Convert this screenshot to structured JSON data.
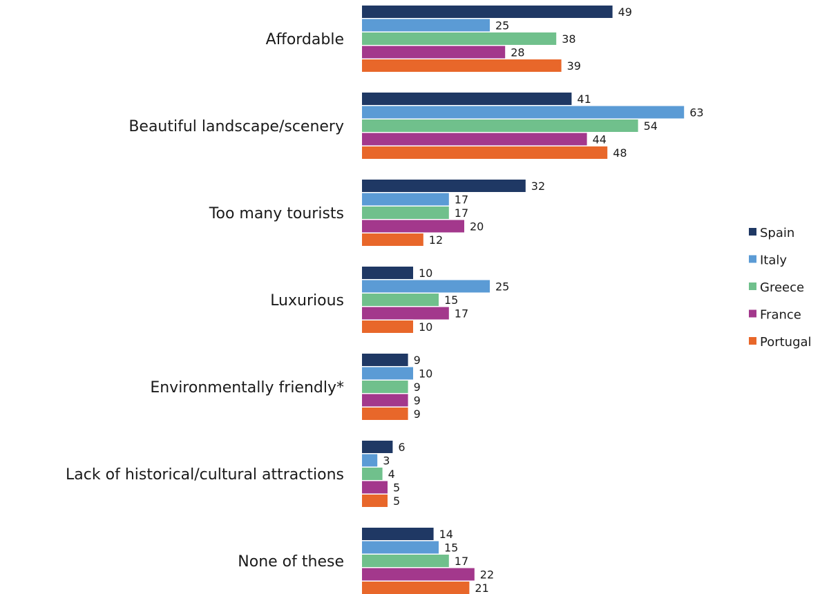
{
  "chart_data": {
    "type": "bar",
    "orientation": "horizontal",
    "title": "",
    "xlabel": "",
    "ylabel": "",
    "categories": [
      "Affordable",
      "Beautiful landscape/scenery",
      "Too many tourists",
      "Luxurious",
      "Environmentally friendly*",
      "Lack of historical/cultural attractions",
      "None of these"
    ],
    "series": [
      {
        "name": "Spain",
        "color": "#1f3864",
        "values": [
          49,
          41,
          32,
          10,
          9,
          6,
          14
        ]
      },
      {
        "name": "Italy",
        "color": "#5b9bd5",
        "values": [
          25,
          63,
          17,
          25,
          10,
          3,
          15
        ]
      },
      {
        "name": "Greece",
        "color": "#70c08c",
        "values": [
          38,
          54,
          17,
          15,
          9,
          4,
          17
        ]
      },
      {
        "name": "France",
        "color": "#a3388c",
        "values": [
          28,
          44,
          20,
          17,
          9,
          5,
          22
        ]
      },
      {
        "name": "Portugal",
        "color": "#e8672a",
        "values": [
          39,
          48,
          12,
          10,
          9,
          5,
          21
        ]
      }
    ],
    "xlim": [
      0,
      70
    ],
    "grid": false,
    "legend_position": "right"
  }
}
